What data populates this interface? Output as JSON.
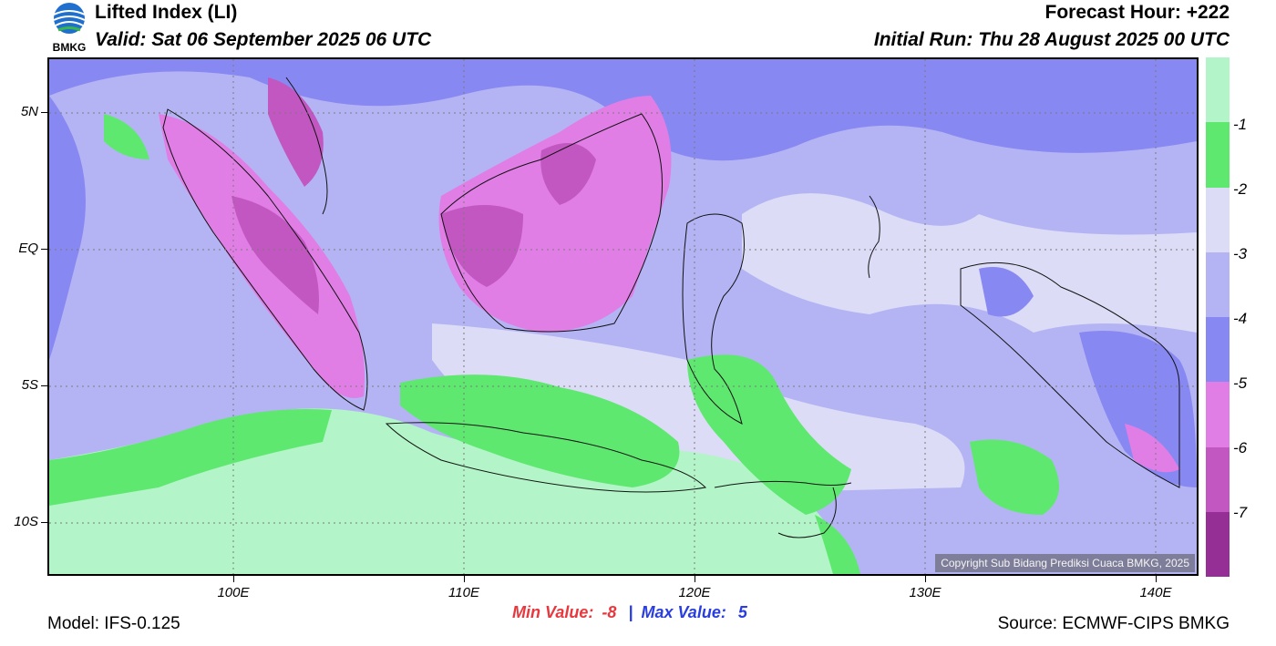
{
  "header": {
    "title": "Lifted Index (LI)",
    "valid": "Valid: Sat 06 September 2025 06 UTC",
    "forecast_hour": "Forecast Hour: +222",
    "initial_run": "Initial Run: Thu 28 August 2025 00 UTC",
    "logo_text": "BMKG"
  },
  "map": {
    "lat_ticks": [
      "5N",
      "EQ",
      "5S",
      "10S"
    ],
    "lon_ticks": [
      "100E",
      "110E",
      "120E",
      "130E",
      "140E"
    ],
    "copyright": "Copyright Sub Bidang Prediksi Cuaca BMKG, 2025",
    "colors": {
      "gt_-1": "#b3f5c8",
      "-1_-2": "#5fe870",
      "-2_-3": "#dcdcf6",
      "-3_-4": "#b4b4f4",
      "-4_-5": "#8888f2",
      "-5_-6": "#e07ee6",
      "-6_-7": "#c257c2",
      "lt_-7": "#952e95"
    }
  },
  "colorbar": {
    "labels": [
      "-1",
      "-2",
      "-3",
      "-4",
      "-5",
      "-6",
      "-7"
    ],
    "colors": [
      "#b3f5c8",
      "#5fe870",
      "#dcdcf6",
      "#b4b4f4",
      "#8888f2",
      "#e07ee6",
      "#c257c2",
      "#952e95"
    ]
  },
  "footer": {
    "model": "Model: IFS-0.125",
    "min_label": "Min Value:",
    "min_value": "-8",
    "separator": "|",
    "max_label": "Max Value:",
    "max_value": "5",
    "source": "Source: ECMWF-CIPS BMKG",
    "min_color": "#e8383d",
    "max_color": "#2a3ee0"
  }
}
